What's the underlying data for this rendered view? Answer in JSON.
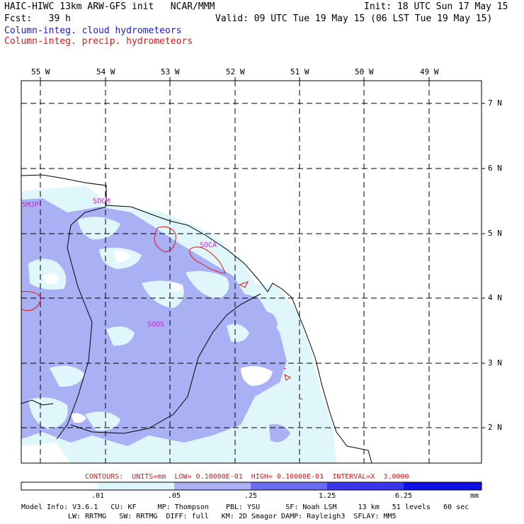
{
  "header": {
    "title_left": "HAIC-HIWC 13km ARW-GFS init   NCAR/MMM",
    "init": "Init: 18 UTC Sun 17 May 15",
    "fcst": "Fcst:   39 h",
    "valid": "Valid: 09 UTC Tue 19 May 15 (06 LST Tue 19 May 15)",
    "field1": "Column-integ. cloud hydrometeors",
    "field2": "Column-integ. precip. hydrometeors"
  },
  "axes": {
    "lon_labels": [
      "55 W",
      "54 W",
      "53 W",
      "52 W",
      "51 W",
      "50 W",
      "49 W"
    ],
    "lat_labels": [
      "7 N",
      "6 N",
      "5 N",
      "4 N",
      "3 N",
      "2 N"
    ]
  },
  "map_labels": {
    "smjp": "SMJP",
    "socm": "SOCM",
    "soca": "SOCA",
    "soos": "SOOS"
  },
  "contours_line": "CONTOURS:  UNITS=mm  LOW= 0.10000E-01  HIGH= 0.10000E-01  INTERVAL=X  3.0000",
  "colorbar": {
    "ticks": [
      ".01",
      ".05",
      ".25",
      "1.25",
      "6.25"
    ],
    "units": "mm",
    "colors": [
      "#ffffff",
      "#dff6fb",
      "#aab0f4",
      "#6c6cf0",
      "#3838ea",
      "#1010e4"
    ]
  },
  "model_info": {
    "line1": "Model Info: V3.6.1   CU: KF     MP: Thompson    PBL: YSU      SF: Noah LSM     13 km   51 levels   60 sec",
    "line2": "LW: RRTMG   SW: RRTMG  DIFF: full   KM: 2D Smagor DAMP: Rayleigh3  SFLAY: MM5"
  }
}
